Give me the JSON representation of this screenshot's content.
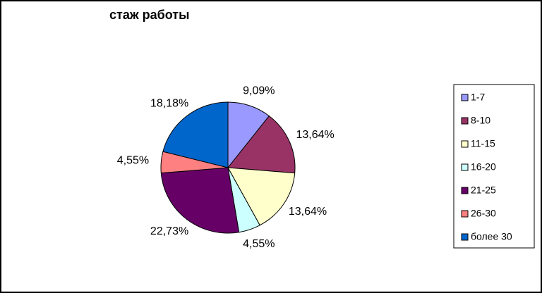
{
  "chart_data": {
    "type": "pie",
    "title": "стаж работы",
    "categories": [
      "1-7",
      "8-10",
      "11-15",
      "16-20",
      "21-25",
      "26-30",
      "более 30"
    ],
    "values": [
      9.09,
      13.64,
      13.64,
      4.55,
      22.73,
      4.55,
      18.18
    ],
    "value_labels": [
      "9,09%",
      "13,64%",
      "13,64%",
      "4,55%",
      "22,73%",
      "4,55%",
      "18,18%"
    ],
    "colors": [
      "#9999ff",
      "#993366",
      "#ffffcc",
      "#ccffff",
      "#660066",
      "#ff8080",
      "#0066cc"
    ],
    "legend": "right"
  }
}
